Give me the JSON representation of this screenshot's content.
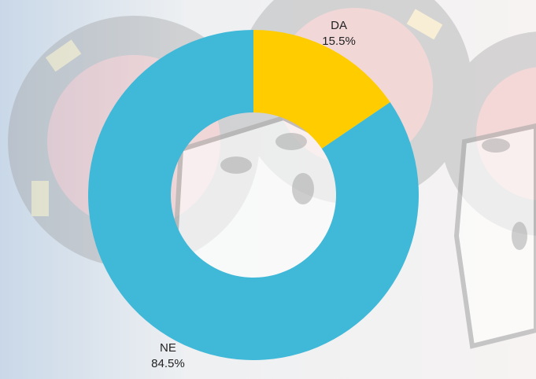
{
  "chart_data": {
    "type": "donut",
    "categories": [
      "DA",
      "NE"
    ],
    "values": [
      15.5,
      84.5
    ],
    "value_labels": [
      "15.5%",
      "84.5%"
    ],
    "colors": [
      "#ffcc00",
      "#40b8d8"
    ]
  }
}
